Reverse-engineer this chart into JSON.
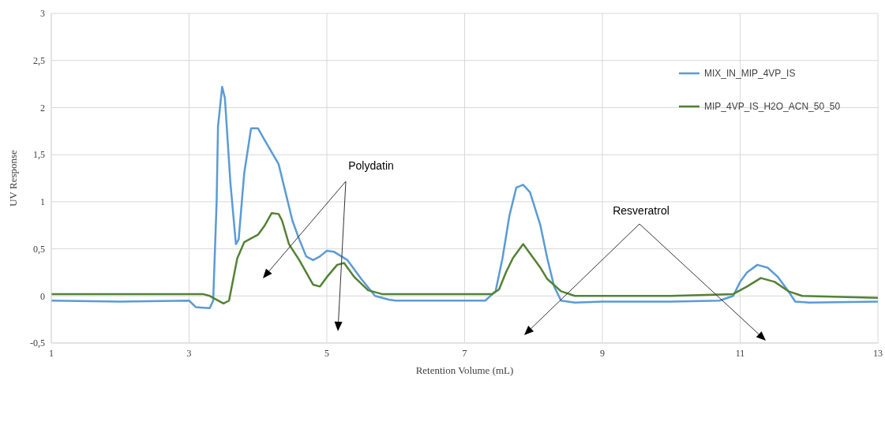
{
  "chart_data": {
    "type": "line",
    "xlabel": "Retention Volume (mL)",
    "ylabel": "UV Response",
    "xlim": [
      1,
      13
    ],
    "xticks": [
      1,
      3,
      5,
      7,
      9,
      11,
      13
    ],
    "ylim": [
      -0.5,
      3
    ],
    "yticks": [
      {
        "value": -0.5,
        "label": "-0,5"
      },
      0,
      {
        "value": 0.5,
        "label": "0,5"
      },
      1,
      {
        "value": 1.5,
        "label": "1,5"
      },
      2,
      {
        "value": 2.5,
        "label": "2,5"
      },
      3
    ],
    "grid": true,
    "legend": "right",
    "line_style": "solid",
    "annotations": [
      "Polydatin",
      "Resveratrol"
    ],
    "series": [
      {
        "name": "MIX_IN_MIP_4VP_IS",
        "color": "#5b9bd5",
        "x": [
          1,
          2,
          3,
          3.1,
          3.3,
          3.35,
          3.4,
          3.42,
          3.48,
          3.52,
          3.6,
          3.68,
          3.72,
          3.8,
          3.9,
          4.0,
          4.1,
          4.3,
          4.4,
          4.5,
          4.6,
          4.7,
          4.8,
          4.9,
          5.0,
          5.1,
          5.3,
          5.5,
          5.7,
          5.9,
          6,
          7,
          7.3,
          7.45,
          7.55,
          7.65,
          7.75,
          7.85,
          7.95,
          8.1,
          8.2,
          8.3,
          8.4,
          8.6,
          9,
          10,
          10.7,
          10.9,
          11.0,
          11.1,
          11.25,
          11.4,
          11.55,
          11.7,
          11.8,
          12,
          13
        ],
        "values": [
          -0.05,
          -0.06,
          -0.05,
          -0.12,
          -0.13,
          -0.05,
          1.0,
          1.8,
          2.22,
          2.1,
          1.2,
          0.55,
          0.6,
          1.3,
          1.78,
          1.78,
          1.65,
          1.4,
          1.1,
          0.8,
          0.6,
          0.42,
          0.38,
          0.42,
          0.48,
          0.47,
          0.38,
          0.18,
          0.0,
          -0.04,
          -0.05,
          -0.05,
          -0.05,
          0.05,
          0.4,
          0.85,
          1.15,
          1.18,
          1.1,
          0.75,
          0.4,
          0.1,
          -0.05,
          -0.07,
          -0.06,
          -0.06,
          -0.05,
          0.0,
          0.15,
          0.25,
          0.33,
          0.3,
          0.2,
          0.05,
          -0.06,
          -0.07,
          -0.06
        ]
      },
      {
        "name": "MIP_4VP_IS_H2O_ACN_50_50",
        "color": "#548235",
        "x": [
          1,
          3,
          3.2,
          3.3,
          3.5,
          3.58,
          3.62,
          3.7,
          3.8,
          4.0,
          4.1,
          4.2,
          4.3,
          4.35,
          4.45,
          4.6,
          4.7,
          4.8,
          4.9,
          5.0,
          5.15,
          5.25,
          5.4,
          5.6,
          5.8,
          7,
          7.4,
          7.5,
          7.6,
          7.7,
          7.8,
          7.85,
          7.95,
          8.1,
          8.2,
          8.4,
          8.6,
          10,
          10.9,
          11.1,
          11.3,
          11.5,
          11.7,
          11.9,
          13
        ],
        "values": [
          0.02,
          0.02,
          0.02,
          0.0,
          -0.08,
          -0.05,
          0.1,
          0.4,
          0.57,
          0.65,
          0.75,
          0.88,
          0.87,
          0.8,
          0.55,
          0.38,
          0.25,
          0.12,
          0.1,
          0.2,
          0.33,
          0.35,
          0.2,
          0.06,
          0.02,
          0.02,
          0.02,
          0.07,
          0.25,
          0.4,
          0.5,
          0.55,
          0.45,
          0.3,
          0.18,
          0.05,
          0.0,
          0.0,
          0.02,
          0.1,
          0.19,
          0.15,
          0.05,
          0.0,
          -0.02
        ]
      }
    ]
  }
}
